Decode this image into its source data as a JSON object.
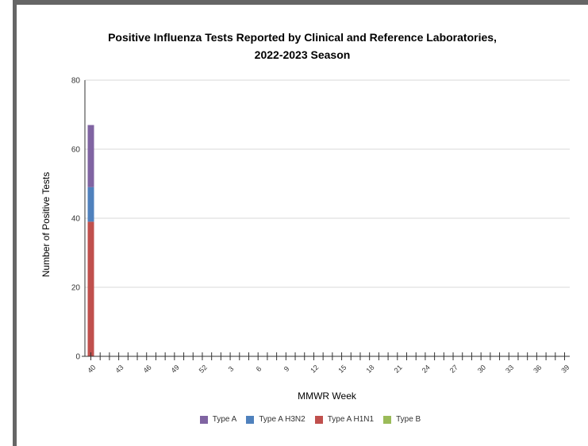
{
  "chart_data": {
    "type": "bar",
    "stacked": true,
    "title_line1": "Positive Influenza Tests Reported by Clinical and Reference Laboratories,",
    "title_line2": "2022-2023 Season",
    "xlabel": "MMWR Week",
    "ylabel": "Number of Positive Tests",
    "ylim": [
      0,
      80
    ],
    "yticks": [
      0,
      20,
      40,
      60,
      80
    ],
    "grid": true,
    "legend_position": "bottom",
    "categories": [
      40,
      41,
      42,
      43,
      44,
      45,
      46,
      47,
      48,
      49,
      50,
      51,
      52,
      1,
      2,
      3,
      4,
      5,
      6,
      7,
      8,
      9,
      10,
      11,
      12,
      13,
      14,
      15,
      16,
      17,
      18,
      19,
      20,
      21,
      22,
      23,
      24,
      25,
      26,
      27,
      28,
      29,
      30,
      31,
      32,
      33,
      34,
      35,
      36,
      37,
      38,
      39
    ],
    "tick_labels": [
      "40",
      "43",
      "46",
      "49",
      "52",
      "3",
      "6",
      "9",
      "12",
      "15",
      "18",
      "21",
      "24",
      "27",
      "30",
      "33",
      "36",
      "39"
    ],
    "series": [
      {
        "name": "Type A H1N1",
        "color": "#c0504d",
        "values": [
          39,
          0,
          0,
          0,
          0,
          0,
          0,
          0,
          0,
          0,
          0,
          0,
          0,
          0,
          0,
          0,
          0,
          0,
          0,
          0,
          0,
          0,
          0,
          0,
          0,
          0,
          0,
          0,
          0,
          0,
          0,
          0,
          0,
          0,
          0,
          0,
          0,
          0,
          0,
          0,
          0,
          0,
          0,
          0,
          0,
          0,
          0,
          0,
          0,
          0,
          0,
          0
        ]
      },
      {
        "name": "Type A H3N2",
        "color": "#4f81bd",
        "values": [
          10,
          0,
          0,
          0,
          0,
          0,
          0,
          0,
          0,
          0,
          0,
          0,
          0,
          0,
          0,
          0,
          0,
          0,
          0,
          0,
          0,
          0,
          0,
          0,
          0,
          0,
          0,
          0,
          0,
          0,
          0,
          0,
          0,
          0,
          0,
          0,
          0,
          0,
          0,
          0,
          0,
          0,
          0,
          0,
          0,
          0,
          0,
          0,
          0,
          0,
          0,
          0
        ]
      },
      {
        "name": "Type A",
        "color": "#8064a2",
        "values": [
          18,
          0,
          0,
          0,
          0,
          0,
          0,
          0,
          0,
          0,
          0,
          0,
          0,
          0,
          0,
          0,
          0,
          0,
          0,
          0,
          0,
          0,
          0,
          0,
          0,
          0,
          0,
          0,
          0,
          0,
          0,
          0,
          0,
          0,
          0,
          0,
          0,
          0,
          0,
          0,
          0,
          0,
          0,
          0,
          0,
          0,
          0,
          0,
          0,
          0,
          0,
          0
        ]
      },
      {
        "name": "Type B",
        "color": "#9bbb59",
        "values": [
          0,
          0,
          0,
          0,
          0,
          0,
          0,
          0,
          0,
          0,
          0,
          0,
          0,
          0,
          0,
          0,
          0,
          0,
          0,
          0,
          0,
          0,
          0,
          0,
          0,
          0,
          0,
          0,
          0,
          0,
          0,
          0,
          0,
          0,
          0,
          0,
          0,
          0,
          0,
          0,
          0,
          0,
          0,
          0,
          0,
          0,
          0,
          0,
          0,
          0,
          0,
          0
        ]
      }
    ],
    "legend_order": [
      "Type A",
      "Type A H3N2",
      "Type A H1N1",
      "Type B"
    ]
  }
}
